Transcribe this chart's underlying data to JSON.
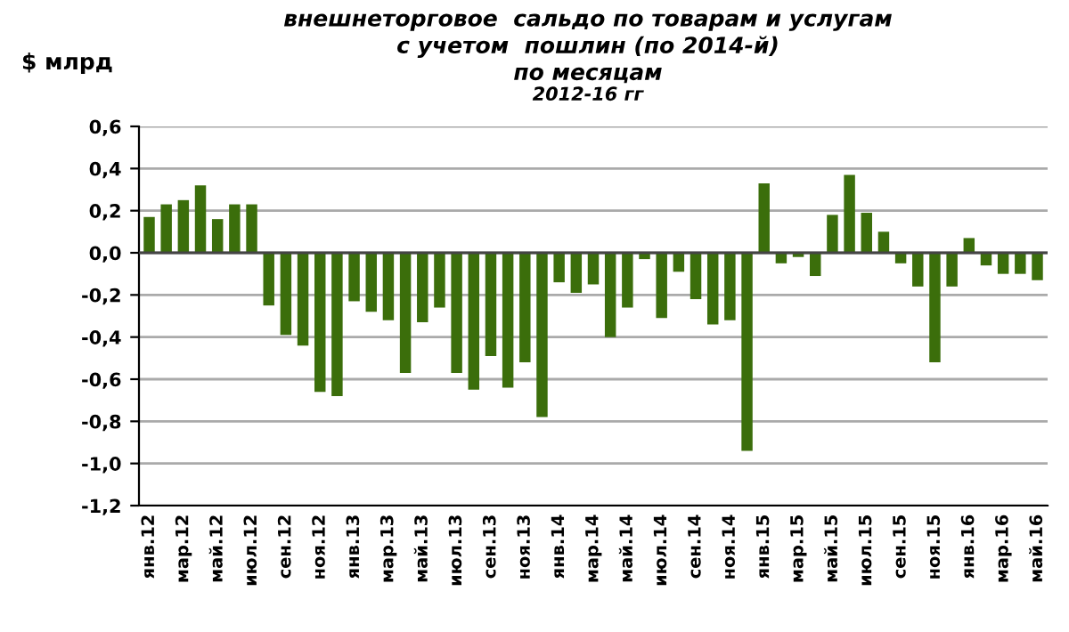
{
  "chart_data": {
    "type": "bar",
    "title": "внешнеторговое  сальдо по товарам и услугам\nс учетом  пошлин (по 2014-й)\nпо месяцам",
    "subtitle": "2012-16 гг",
    "ylabel": "$ млрд",
    "categories": [
      "янв.12",
      null,
      "мар.12",
      null,
      "май.12",
      null,
      "июл.12",
      null,
      "сен.12",
      null,
      "ноя.12",
      null,
      "янв.13",
      null,
      "мар.13",
      null,
      "май.13",
      null,
      "июл.13",
      null,
      "сен.13",
      null,
      "ноя.13",
      null,
      "янв.14",
      null,
      "мар.14",
      null,
      "май.14",
      null,
      "июл.14",
      null,
      "сен.14",
      null,
      "ноя.14",
      null,
      "янв.15",
      null,
      "мар.15",
      null,
      "май.15",
      null,
      "июл.15",
      null,
      "сен.15",
      null,
      "ноя.15",
      null,
      "янв.16",
      null,
      "мар.16",
      null,
      "май.16"
    ],
    "values": [
      0.17,
      0.23,
      0.25,
      0.32,
      0.16,
      0.23,
      0.23,
      -0.25,
      -0.39,
      -0.44,
      -0.66,
      -0.68,
      -0.23,
      -0.28,
      -0.32,
      -0.57,
      -0.33,
      -0.26,
      -0.57,
      -0.65,
      -0.49,
      -0.64,
      -0.52,
      -0.78,
      -0.14,
      -0.19,
      -0.15,
      -0.4,
      -0.26,
      -0.03,
      -0.31,
      -0.09,
      -0.22,
      -0.34,
      -0.32,
      -0.94,
      0.33,
      -0.05,
      -0.02,
      -0.11,
      0.18,
      0.37,
      0.19,
      0.1,
      -0.05,
      -0.16,
      -0.52,
      -0.16,
      0.07,
      -0.06,
      -0.1,
      -0.1,
      -0.13
    ],
    "color": "#3b6e0b",
    "ylim": [
      -1.2,
      0.6
    ],
    "yticks": [
      {
        "value": -1.2,
        "label": "-1,2"
      },
      {
        "value": -1.0,
        "label": "-1,0"
      },
      {
        "value": -0.8,
        "label": "-0,8"
      },
      {
        "value": -0.6,
        "label": "-0,6"
      },
      {
        "value": -0.4,
        "label": "-0,4"
      },
      {
        "value": -0.2,
        "label": "-0,2"
      },
      {
        "value": 0,
        "label": "0,0"
      },
      {
        "value": 0.2,
        "label": "0,2"
      },
      {
        "value": 0.4,
        "label": "0,4"
      },
      {
        "value": 0.6,
        "label": "0,6"
      }
    ],
    "grid": "y"
  }
}
